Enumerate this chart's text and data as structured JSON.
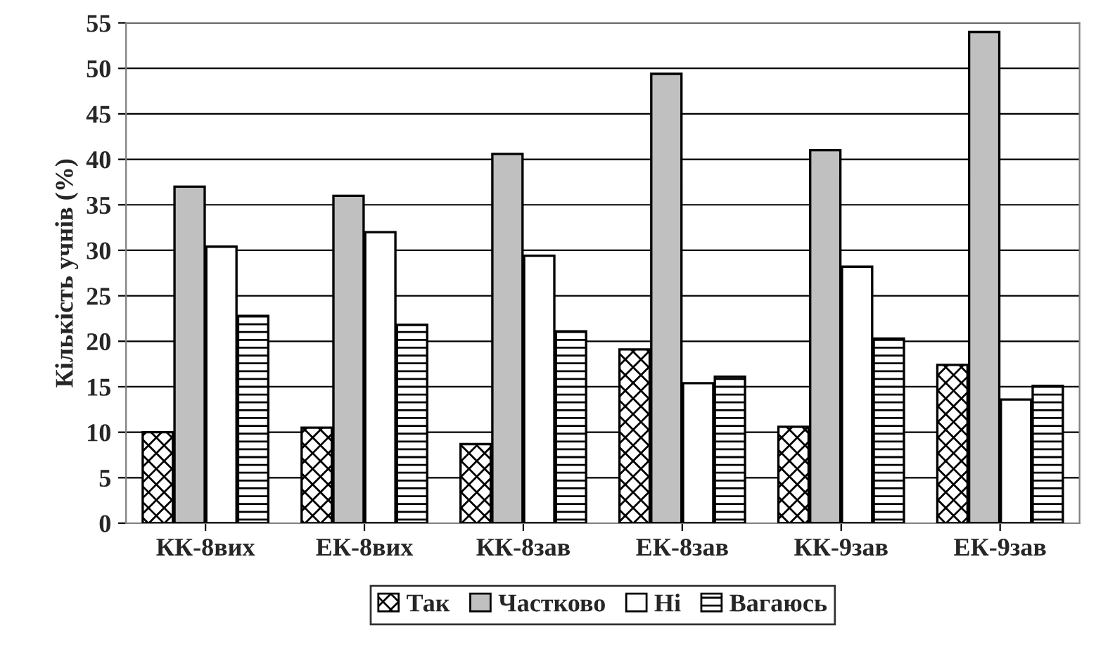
{
  "chart_data": {
    "type": "bar",
    "ylabel": "Кількість учнів (%)",
    "categories": [
      "КК-8вих",
      "ЕК-8вих",
      "КК-8зав",
      "ЕК-8зав",
      "КК-9зав",
      "ЕК-9зав"
    ],
    "series": [
      {
        "name": "Так",
        "color": "#ffffff",
        "values": [
          10,
          10.5,
          8.7,
          19.1,
          10.6,
          17.4
        ]
      },
      {
        "name": "Частково",
        "color": "#c0c0c0",
        "values": [
          37,
          36,
          40.6,
          49.4,
          41,
          54
        ]
      },
      {
        "name": "Ні",
        "color": "#ffffff",
        "values": [
          30.4,
          32,
          29.4,
          15.4,
          28.2,
          13.6
        ]
      },
      {
        "name": "Вагаюсь",
        "color": "#ffffff",
        "values": [
          22.8,
          21.8,
          21.1,
          16.1,
          20.3,
          15.1
        ]
      }
    ],
    "ylim": [
      0,
      55
    ],
    "yticks": [
      0,
      5,
      10,
      15,
      20,
      25,
      30,
      35,
      40,
      45,
      50,
      55
    ],
    "grid": "y",
    "legend": "bottom"
  }
}
